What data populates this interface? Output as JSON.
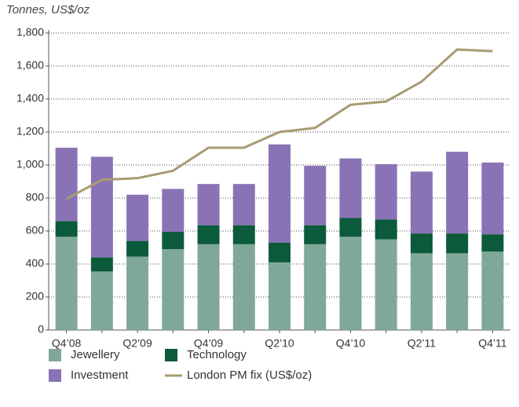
{
  "chart_data": {
    "type": "bar",
    "ylabel": "Tonnes, US$/oz",
    "categories": [
      "Q4’08",
      null,
      "Q2’09",
      null,
      "Q4’09",
      null,
      "Q2’10",
      null,
      "Q4’10",
      null,
      "Q2’11",
      null,
      "Q4’11"
    ],
    "series": [
      {
        "name": "Jewellery",
        "type": "bar",
        "color": "#7fa898",
        "values": [
          565,
          355,
          445,
          490,
          520,
          520,
          410,
          520,
          565,
          550,
          465,
          465,
          475
        ]
      },
      {
        "name": "Technology",
        "type": "bar",
        "color": "#0b5a3b",
        "values": [
          95,
          85,
          95,
          105,
          115,
          115,
          120,
          115,
          115,
          120,
          120,
          120,
          105
        ]
      },
      {
        "name": "Investment",
        "type": "bar",
        "color": "#8a73b5",
        "values": [
          445,
          610,
          280,
          260,
          250,
          250,
          595,
          360,
          360,
          335,
          375,
          495,
          435
        ]
      },
      {
        "name": "London PM fix (US$/oz)",
        "type": "line",
        "color": "#a89b72",
        "values": [
          795,
          910,
          920,
          965,
          1105,
          1105,
          1200,
          1225,
          1365,
          1385,
          1505,
          1700,
          1690
        ]
      }
    ],
    "ylim": [
      0,
      1800
    ],
    "yticks": [
      0,
      200,
      400,
      600,
      800,
      {
        "value": 1000,
        "label": "1,000"
      },
      {
        "value": 1200,
        "label": "1,200"
      },
      {
        "value": 1400,
        "label": "1,400"
      },
      {
        "value": 1600,
        "label": "1,600"
      },
      {
        "value": 1800,
        "label": "1,800"
      }
    ],
    "grid": true
  }
}
